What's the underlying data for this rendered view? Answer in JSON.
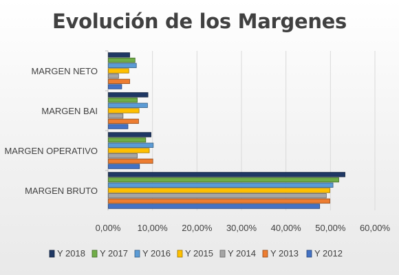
{
  "chart_data": {
    "type": "bar",
    "orientation": "horizontal",
    "title": "Evolución de los Margenes",
    "xlabel": "",
    "ylabel": "",
    "xlim": [
      0,
      60
    ],
    "x_ticks": [
      "0,00%",
      "10,00%",
      "20,00%",
      "30,00%",
      "40,00%",
      "50,00%",
      "60,00%"
    ],
    "grid": true,
    "legend_position": "bottom",
    "categories": [
      "MARGEN BRUTO",
      "MARGEN OPERATIVO",
      "MARGEN BAI",
      "MARGEN NETO"
    ],
    "series": [
      {
        "name": "Y 2018",
        "color": "#1f3864",
        "values": [
          53.2,
          9.6,
          8.9,
          4.8
        ]
      },
      {
        "name": "Y 2017",
        "color": "#70ad47",
        "values": [
          51.8,
          8.4,
          6.5,
          6.0
        ]
      },
      {
        "name": "Y 2016",
        "color": "#5b9bd5",
        "values": [
          50.5,
          10.1,
          8.8,
          6.3
        ]
      },
      {
        "name": "Y 2015",
        "color": "#ffc000",
        "values": [
          49.8,
          9.2,
          6.9,
          4.6
        ]
      },
      {
        "name": "Y 2014",
        "color": "#a5a5a5",
        "values": [
          49.0,
          6.5,
          3.3,
          2.3
        ]
      },
      {
        "name": "Y 2013",
        "color": "#ed7d31",
        "values": [
          49.8,
          10.0,
          6.8,
          4.8
        ]
      },
      {
        "name": "Y 2012",
        "color": "#4472c4",
        "values": [
          47.5,
          7.0,
          4.4,
          3.0
        ]
      }
    ]
  }
}
